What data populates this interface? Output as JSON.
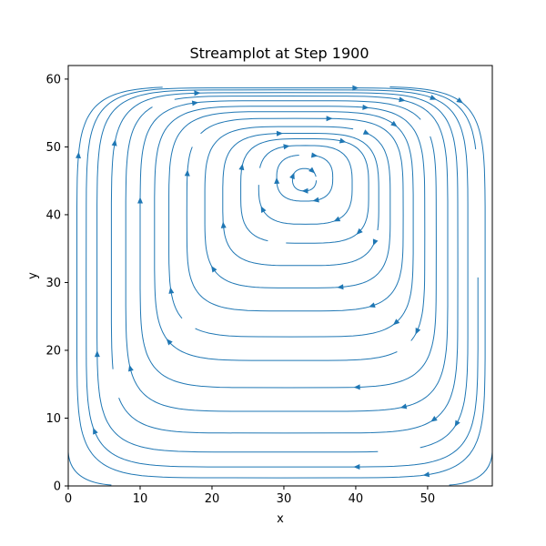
{
  "chart_data": {
    "type": "streamplot",
    "title": "Streamplot at Step 1900",
    "xlabel": "x",
    "ylabel": "y",
    "xlim": [
      0,
      59
    ],
    "ylim": [
      0,
      62
    ],
    "xticks": [
      0,
      10,
      20,
      30,
      40,
      50
    ],
    "yticks": [
      0,
      10,
      20,
      30,
      40,
      50,
      60
    ],
    "grid": false,
    "line_color": "#1f77b4",
    "vortex_center": [
      32.0,
      45.0
    ],
    "streamlines": [
      {
        "x_range": [
          31.2,
          34.5
        ],
        "y_range": [
          43.5,
          46.8
        ]
      },
      {
        "x_range": [
          29.0,
          36.8
        ],
        "y_range": [
          42.0,
          48.8
        ]
      },
      {
        "x_range": [
          26.5,
          39.5
        ],
        "y_range": [
          38.6,
          50.2
        ]
      },
      {
        "x_range": [
          24.0,
          41.8
        ],
        "y_range": [
          35.8,
          51.2
        ]
      },
      {
        "x_range": [
          21.5,
          43.2
        ],
        "y_range": [
          32.5,
          52.0
        ]
      },
      {
        "x_range": [
          19.0,
          44.8
        ],
        "y_range": [
          29.2,
          53.0
        ]
      },
      {
        "x_range": [
          16.5,
          46.6
        ],
        "y_range": [
          25.8,
          54.2
        ]
      },
      {
        "x_range": [
          14.0,
          48.0
        ],
        "y_range": [
          22.0,
          55.2
        ]
      },
      {
        "x_range": [
          12.0,
          49.6
        ],
        "y_range": [
          18.5,
          56.0
        ]
      },
      {
        "x_range": [
          10.0,
          51.2
        ],
        "y_range": [
          14.5,
          56.8
        ]
      },
      {
        "x_range": [
          8.0,
          52.8
        ],
        "y_range": [
          11.0,
          57.5
        ]
      },
      {
        "x_range": [
          6.0,
          54.2
        ],
        "y_range": [
          7.8,
          58.0
        ]
      },
      {
        "x_range": [
          4.0,
          55.6
        ],
        "y_range": [
          5.0,
          58.4
        ]
      },
      {
        "x_range": [
          2.5,
          57.0
        ],
        "y_range": [
          2.8,
          58.7
        ]
      },
      {
        "x_range": [
          1.2,
          58.0
        ],
        "y_range": [
          1.2,
          58.9
        ]
      }
    ],
    "corner_eddies": [
      {
        "corner": "bottom-left",
        "x_range": [
          0.0,
          6.0
        ],
        "y_range": [
          0.0,
          5.0
        ]
      },
      {
        "corner": "bottom-right",
        "x_range": [
          53.0,
          59.0
        ],
        "y_range": [
          0.0,
          5.0
        ]
      }
    ]
  }
}
